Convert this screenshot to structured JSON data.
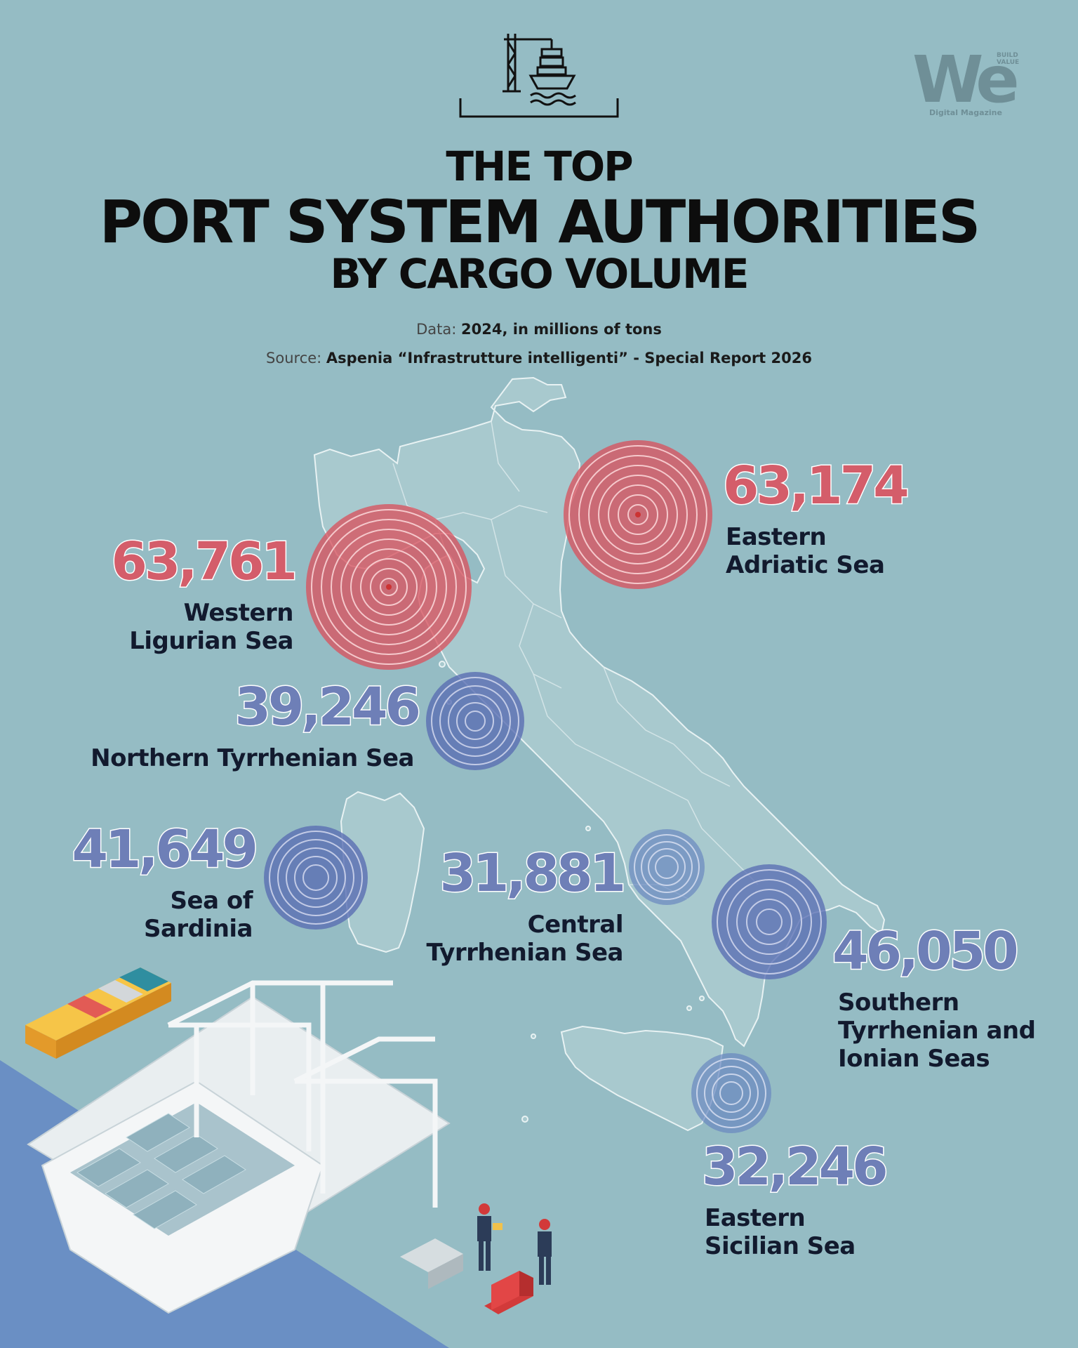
{
  "header": {
    "title_line1": "THE TOP",
    "title_line2": "PORT SYSTEM AUTHORITIES",
    "title_line3": "BY CARGO VOLUME",
    "data_key": "Data:",
    "data_value": "2024, in millions of tons",
    "source_key": "Source:",
    "source_value": "Aspenia “Infrastrutture intelligenti” - Special Report 2026"
  },
  "logo": {
    "mark": "We",
    "tagline": "BUILD VALUE",
    "caption": "Digital Magazine"
  },
  "authorities": [
    {
      "value": "63,761",
      "name_line1": "Western",
      "name_line2": "Ligurian Sea",
      "color": "#d45d6a"
    },
    {
      "value": "63,174",
      "name_line1": "Eastern",
      "name_line2": "Adriatic Sea",
      "color": "#d45d6a"
    },
    {
      "value": "39,246",
      "name_line1": "Northern Tyrrhenian Sea",
      "color": "#6e7fb7"
    },
    {
      "value": "41,649",
      "name_line1": "Sea of",
      "name_line2": "Sardinia",
      "color": "#6e7fb7"
    },
    {
      "value": "31,881",
      "name_line1": "Central",
      "name_line2": "Tyrrhenian Sea",
      "color": "#6e7fb7"
    },
    {
      "value": "46,050",
      "name_line1": "Southern",
      "name_line2": "Tyrrhenian and",
      "name_line3": "Ionian Seas",
      "color": "#6e7fb7"
    },
    {
      "value": "32,246",
      "name_line1": "Eastern",
      "name_line2": "Sicilian Sea",
      "color": "#6e7fb7"
    }
  ],
  "icons": {
    "header_icon": "crane-ship-icon",
    "illustration": "container-port-illustration"
  },
  "colors": {
    "background": "#95bcc4",
    "map_land": "#a8c9ce",
    "high_volume": "#d45d6a",
    "mid_volume": "#6e7fb7",
    "sea": "#6a8fc4"
  }
}
